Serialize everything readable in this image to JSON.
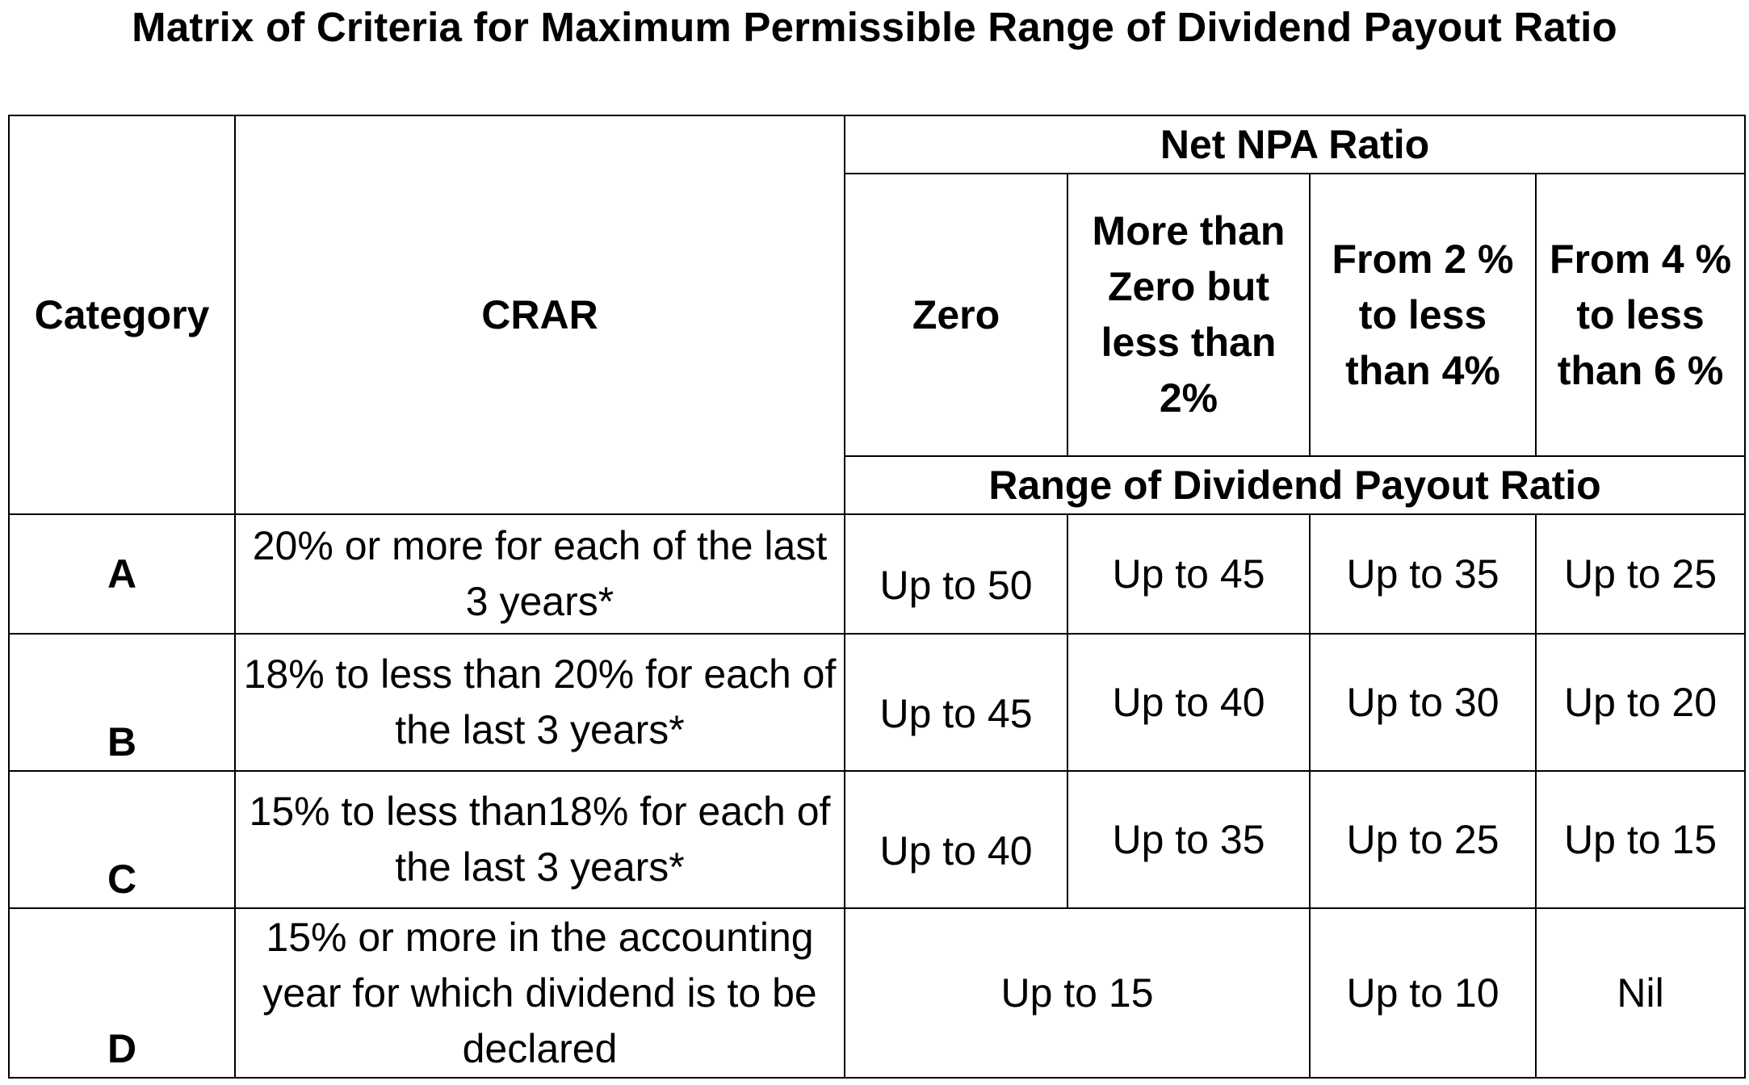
{
  "title": "Matrix of Criteria for Maximum Permissible Range of Dividend Payout Ratio",
  "header": {
    "category": "Category",
    "crar": "CRAR",
    "net_npa_ratio": "Net NPA Ratio",
    "npa_columns": [
      "Zero",
      "More than Zero but less than 2%",
      "From 2 % to less than 4%",
      "From 4 % to less than 6 %"
    ],
    "range_label": "Range of Dividend Payout Ratio"
  },
  "rows": [
    {
      "category": "A",
      "crar": "20% or more for each of the last 3 years*",
      "values": [
        "Up to 50",
        "Up to 45",
        "Up to 35",
        "Up to 25"
      ]
    },
    {
      "category": "B",
      "crar": "18% to less than 20% for each of the last 3 years*",
      "values": [
        "Up to 45",
        "Up to 40",
        "Up to 30",
        "Up to 20"
      ]
    },
    {
      "category": "C",
      "crar": "15% to less than18% for each of the last 3 years*",
      "values": [
        "Up to 40",
        "Up to 35",
        "Up to 25",
        "Up to 15"
      ]
    },
    {
      "category": "D",
      "crar": "15% or more in the accounting year for which dividend is to be declared",
      "values": [
        "Up to 15",
        "Up to 10",
        "Nil"
      ]
    }
  ]
}
